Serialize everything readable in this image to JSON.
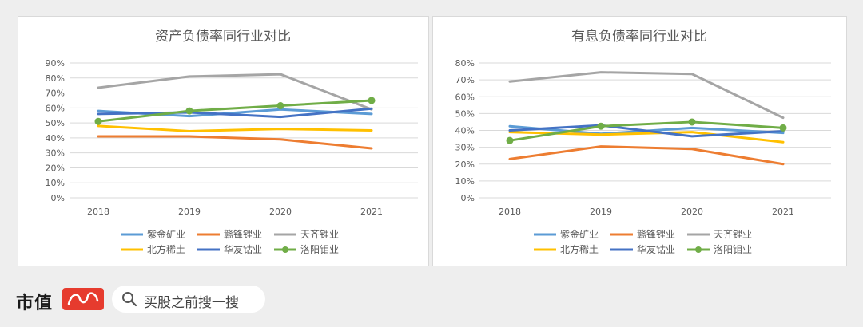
{
  "colors": {
    "紫金矿业": "#5b9bd5",
    "赣锋锂业": "#ed7d31",
    "天齐锂业": "#a5a5a5",
    "北方稀土": "#ffc000",
    "华友钴业": "#4472c4",
    "洛阳钼业": "#70ad47"
  },
  "footer": {
    "brand": "市值",
    "brand_stamp": "风云",
    "search_text": "买股之前搜一搜",
    "search_icon": "search-icon"
  },
  "chart_data": [
    {
      "type": "line",
      "title": "资产负债率同行业对比",
      "x": [
        "2018",
        "2019",
        "2020",
        "2021"
      ],
      "ylim": [
        0,
        90
      ],
      "yticks": [
        "0%",
        "10%",
        "20%",
        "30%",
        "40%",
        "50%",
        "60%",
        "70%",
        "80%",
        "90%"
      ],
      "grid": true,
      "legend_position": "bottom",
      "series": [
        {
          "name": "紫金矿业",
          "values": [
            58,
            54.5,
            59,
            56
          ]
        },
        {
          "name": "赣锋锂业",
          "values": [
            41,
            41,
            39,
            33
          ]
        },
        {
          "name": "天齐锂业",
          "values": [
            73.5,
            81,
            82.5,
            59
          ]
        },
        {
          "name": "北方稀土",
          "values": [
            48,
            44.5,
            46,
            45
          ]
        },
        {
          "name": "华友钴业",
          "values": [
            56,
            57,
            54,
            59.5
          ]
        },
        {
          "name": "洛阳钼业",
          "values": [
            51,
            58,
            61.5,
            65
          ],
          "markers": true
        }
      ]
    },
    {
      "type": "line",
      "title": "有息负债率同行业对比",
      "x": [
        "2018",
        "2019",
        "2020",
        "2021"
      ],
      "ylim": [
        0,
        80
      ],
      "yticks": [
        "0%",
        "10%",
        "20%",
        "30%",
        "40%",
        "50%",
        "60%",
        "70%",
        "80%"
      ],
      "grid": true,
      "legend_position": "bottom",
      "series": [
        {
          "name": "紫金矿业",
          "values": [
            42.5,
            38,
            41.5,
            38.5
          ]
        },
        {
          "name": "赣锋锂业",
          "values": [
            23,
            30.5,
            29,
            20
          ]
        },
        {
          "name": "天齐锂业",
          "values": [
            69,
            74.5,
            73.5,
            47.5
          ]
        },
        {
          "name": "北方稀土",
          "values": [
            39,
            37.5,
            39,
            33
          ]
        },
        {
          "name": "华友钴业",
          "values": [
            40,
            43,
            36.5,
            39.5
          ]
        },
        {
          "name": "洛阳钼业",
          "values": [
            34,
            42.5,
            45,
            41.5
          ],
          "markers": true
        }
      ]
    }
  ]
}
